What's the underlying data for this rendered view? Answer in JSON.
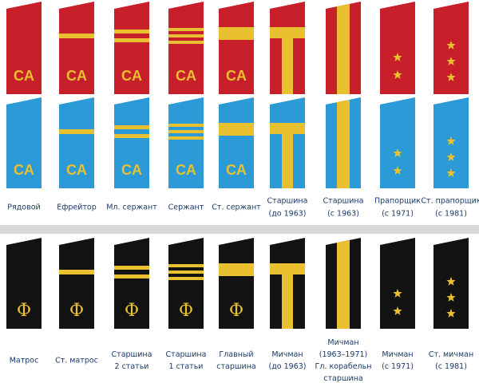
{
  "army_emblem": "CA",
  "navy_emblem": "Ф",
  "army_labels": [
    [
      "Рядовой"
    ],
    [
      "Ефрейтор"
    ],
    [
      "Мл. сержант"
    ],
    [
      "Сержант"
    ],
    [
      "Ст. сержант"
    ],
    [
      "Старшина",
      "(до 1963)"
    ],
    [
      "Старшина",
      "(с 1963)"
    ],
    [
      "Прапорщик",
      "(с 1971)"
    ],
    [
      "Ст. прапорщик",
      "(с 1981)"
    ]
  ],
  "navy_labels": [
    [
      "Матрос"
    ],
    [
      "Ст. матрос"
    ],
    [
      "Старшина",
      "2 статьи"
    ],
    [
      "Старшина",
      "1 статьи"
    ],
    [
      "Главный",
      "старшина"
    ],
    [
      "Мичман",
      "(до 1963)"
    ],
    [
      "Мичман",
      "(1963–1971)",
      "Гл. корабельн",
      "старшина"
    ],
    [
      "Мичман",
      "(с 1971)"
    ],
    [
      "Ст. мичман",
      "(с 1981)"
    ]
  ]
}
